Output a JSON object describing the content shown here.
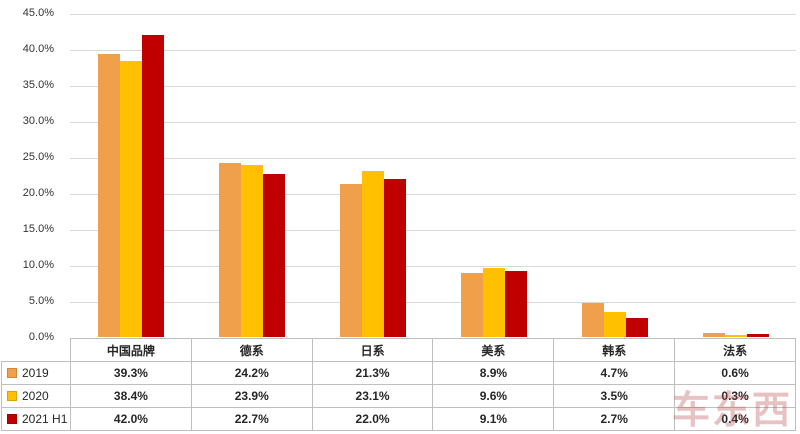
{
  "chart_data": {
    "type": "bar",
    "categories": [
      "中国品牌",
      "德系",
      "日系",
      "美系",
      "韩系",
      "法系"
    ],
    "series": [
      {
        "name": "2019",
        "color": "#F0A04B",
        "values": [
          39.3,
          24.2,
          21.3,
          8.9,
          4.7,
          0.6
        ]
      },
      {
        "name": "2020",
        "color": "#FFC000",
        "values": [
          38.4,
          23.9,
          23.1,
          9.6,
          3.5,
          0.3
        ]
      },
      {
        "name": "2021 H1",
        "color": "#C00000",
        "values": [
          42.0,
          22.7,
          22.0,
          9.1,
          2.7,
          0.4
        ]
      }
    ],
    "title": "",
    "xlabel": "",
    "ylabel": "",
    "ylim": [
      0,
      45
    ],
    "ytick_step": 5,
    "ytick_format": "percent1",
    "value_format": "percent1",
    "grid": true,
    "legend_position": "table-left"
  },
  "watermark": {
    "text": "车东西"
  },
  "colors": {
    "gridline": "#D9D9D9",
    "axis_line": "#9A9A9A",
    "table_border": "#BFBFBF",
    "text": "#262626"
  }
}
